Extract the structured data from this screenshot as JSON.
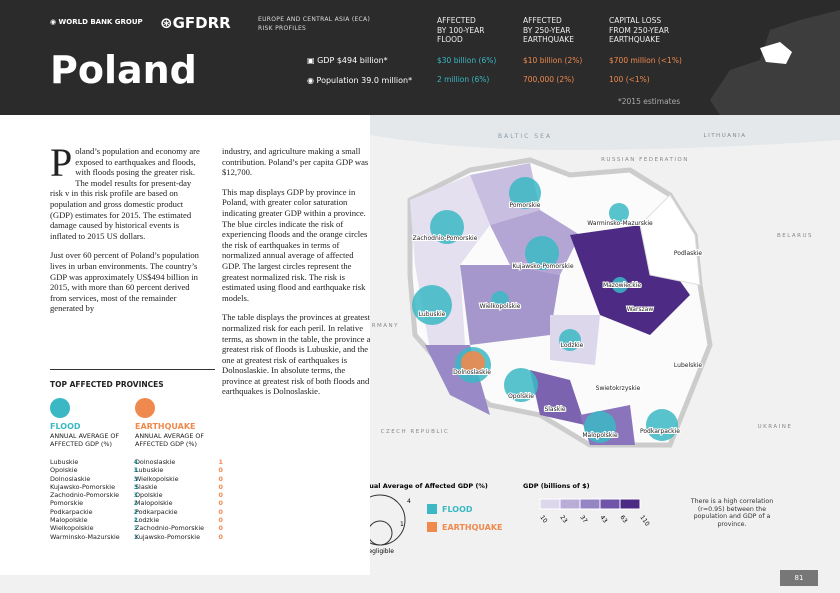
{
  "header": {
    "logo1": "WORLD BANK GROUP",
    "logo2": "GFDRR",
    "region": "EUROPE AND CENTRAL ASIA (ECA)",
    "series": "RISK PROFILES",
    "title": "Poland",
    "gdp": "GDP $494 billion*",
    "population": "Population 39.0 million*",
    "columns": [
      {
        "heading": [
          "AFFECTED",
          "BY 100-YEAR",
          "FLOOD"
        ],
        "gdp": "$30 billion (6%)",
        "population": "2 million (6%)"
      },
      {
        "heading": [
          "AFFECTED",
          "BY 250-YEAR",
          "EARTHQUAKE"
        ],
        "gdp": "$10 billion (2%)",
        "population": "700,000 (2%)"
      },
      {
        "heading": [
          "CAPITAL LOSS",
          "FROM 250-YEAR",
          "EARTHQUAKE"
        ],
        "gdp": "$700 million (<1%)",
        "population": "100 (<1%)"
      }
    ],
    "note": "*2015 estimates"
  },
  "text": {
    "dropcap": "P",
    "intro": "oland’s population and economy are exposed to earthquakes and floods, with floods posing the greater risk. The model results for present-day risk v in this risk profile are based on population and gross domestic product (GDP) estimates for 2015. The estimated damage caused by historical events is inflated to 2015 US dollars.",
    "paragraphs": [
      "Just over 60 percent of Poland’s population lives in urban environments. The country’s GDP was approximately US$494 billion in 2015, with more than 60 percent derived from services, most of the remainder generated by",
      "industry, and agriculture making a small contribution. Poland’s per capita GDP was $12,700.",
      "This map displays GDP by province in Poland, with greater color saturation indicating greater GDP within a province. The blue circles indicate the risk of experiencing floods and the orange circles the risk of earthquakes in terms of normalized annual average of affected GDP. The largest circles represent the greatest normalized risk. The risk is estimated using flood and earthquake risk models.",
      "The table displays the provinces at greatest normalized risk for each peril. In relative terms, as shown in the table, the province at greatest risk of floods is Lubuskie, and the one at greatest risk of earthquakes is Dolnoslaskie. In absolute terms, the province at greatest risk of both floods and earthquakes is Dolnoslaskie."
    ]
  },
  "table": {
    "title": "TOP AFFECTED PROVINCES",
    "flood": {
      "label": "FLOOD",
      "sub": "ANNUAL AVERAGE OF AFFECTED GDP (%)",
      "rows": [
        [
          "Lubuskie",
          4
        ],
        [
          "Opolskie",
          3
        ],
        [
          "Dolnoslaskie",
          3
        ],
        [
          "Kujawsko-Pomorskie",
          3
        ],
        [
          "Zachodnio-Pomorskie",
          3
        ],
        [
          "Pomorskie",
          2
        ],
        [
          "Podkarpackie",
          2
        ],
        [
          "Malopolskie",
          2
        ],
        [
          "Wielkopolskie",
          1
        ],
        [
          "Warminsko-Mazurskie",
          1
        ]
      ]
    },
    "earthquake": {
      "label": "EARTHQUAKE",
      "sub": "ANNUAL AVERAGE OF AFFECTED GDP (%)",
      "rows": [
        [
          "Dolnoslaskie",
          1
        ],
        [
          "Lubuskie",
          0
        ],
        [
          "Wielkopolskie",
          0
        ],
        [
          "Slaskie",
          0
        ],
        [
          "Opolskie",
          0
        ],
        [
          "Malopolskie",
          0
        ],
        [
          "Podkarpackie",
          0
        ],
        [
          "Lodzkie",
          0
        ],
        [
          "Zachodnio-Pomorskie",
          0
        ],
        [
          "Kujawsko-Pomorskie",
          0
        ]
      ]
    }
  },
  "map": {
    "seas": [
      "BALTIC SEA"
    ],
    "countries": [
      "LITHUANIA",
      "RUSSIAN FEDERATION",
      "BELARUS",
      "UKRAINE",
      "CZECH REPUBLIC",
      "GERMANY"
    ],
    "provinces": [
      "Pomorskie",
      "Warminsko-Mazurskie",
      "Zachodnio-Pomorskie",
      "Podlaskie",
      "Kujawsko-Pomorskie",
      "Mazowieckie",
      "Warszaw",
      "Lubuskie",
      "Wielkopolskie",
      "Lodzkie",
      "Lubelskie",
      "Dolnoslaskie",
      "Swietokrzyskie",
      "Opolskie",
      "Slaskie",
      "Malopolskie",
      "Podkarpackie"
    ]
  },
  "legend": {
    "circles_title": "Annual Average of Affected GDP (%)",
    "circle_max": "4",
    "circle_min": "1",
    "negligible": "Negligible",
    "flood": "FLOOD",
    "earthquake": "EARTHQUAKE",
    "gdp_title": "GDP (billions of $)",
    "gdp_ticks": [
      "10",
      "23",
      "37",
      "43",
      "63",
      "110"
    ],
    "note": "There is a high correlation (r=0.95) between the population and GDP of a province."
  },
  "page": "81"
}
